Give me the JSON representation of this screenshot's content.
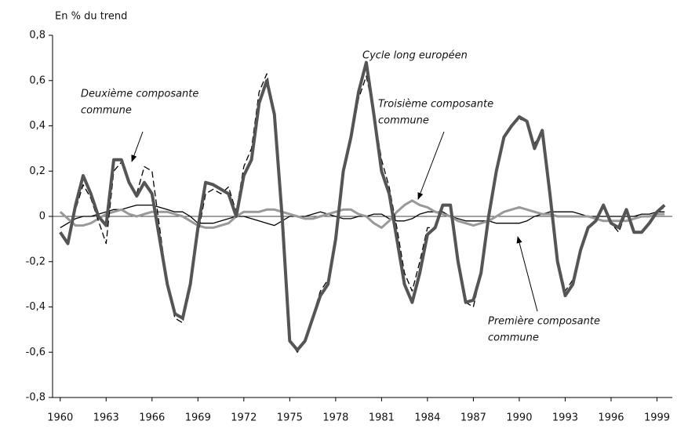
{
  "chart_data": {
    "type": "line",
    "axis_title": "En % du trend",
    "x": [
      1960,
      1960.5,
      1961,
      1961.5,
      1962,
      1962.5,
      1963,
      1963.5,
      1964,
      1964.5,
      1965,
      1965.5,
      1966,
      1966.5,
      1967,
      1967.5,
      1968,
      1968.5,
      1969,
      1969.5,
      1970,
      1970.5,
      1971,
      1971.5,
      1972,
      1972.5,
      1973,
      1973.5,
      1974,
      1974.5,
      1975,
      1975.5,
      1976,
      1976.5,
      1977,
      1977.5,
      1978,
      1978.5,
      1979,
      1979.5,
      1980,
      1980.5,
      1981,
      1981.5,
      1982,
      1982.5,
      1983,
      1983.5,
      1984,
      1984.5,
      1985,
      1985.5,
      1986,
      1986.5,
      1987,
      1987.5,
      1988,
      1988.5,
      1989,
      1989.5,
      1990,
      1990.5,
      1991,
      1991.5,
      1992,
      1992.5,
      1993,
      1993.5,
      1994,
      1994.5,
      1995,
      1995.5,
      1996,
      1996.5,
      1997,
      1997.5,
      1998,
      1998.5,
      1999,
      1999.5
    ],
    "series": [
      {
        "label": [
          "Première composante",
          "commune"
        ],
        "color": "#000000",
        "style": "solid",
        "width": 1.3,
        "values": [
          -0.05,
          -0.03,
          -0.01,
          0.0,
          0.0,
          0.01,
          0.02,
          0.03,
          0.03,
          0.04,
          0.05,
          0.05,
          0.05,
          0.04,
          0.03,
          0.02,
          0.02,
          0.0,
          -0.03,
          -0.03,
          -0.03,
          -0.02,
          -0.01,
          0.0,
          0.0,
          -0.01,
          -0.02,
          -0.03,
          -0.04,
          -0.02,
          0.0,
          0.0,
          0.0,
          0.01,
          0.02,
          0.01,
          0.0,
          -0.01,
          -0.01,
          0.0,
          0.0,
          0.01,
          0.01,
          -0.01,
          -0.02,
          -0.02,
          -0.01,
          0.01,
          0.02,
          0.02,
          0.02,
          0.0,
          -0.01,
          -0.02,
          -0.02,
          -0.02,
          -0.02,
          -0.03,
          -0.03,
          -0.03,
          -0.03,
          -0.02,
          0.0,
          0.01,
          0.02,
          0.02,
          0.02,
          0.02,
          0.01,
          0.0,
          0.0,
          0.0,
          0.0,
          0.0,
          0.0,
          0.0,
          0.01,
          0.01,
          0.02,
          0.02
        ]
      },
      {
        "label": [
          "Troisième composante",
          "commune"
        ],
        "color": "#999999",
        "style": "solid",
        "width": 3,
        "values": [
          0.02,
          -0.01,
          -0.04,
          -0.04,
          -0.03,
          -0.01,
          0.01,
          0.02,
          0.03,
          0.01,
          0.0,
          0.01,
          0.02,
          0.02,
          0.02,
          0.01,
          0.0,
          -0.02,
          -0.04,
          -0.05,
          -0.05,
          -0.04,
          -0.03,
          0.0,
          0.02,
          0.02,
          0.02,
          0.03,
          0.03,
          0.02,
          0.01,
          0.0,
          -0.01,
          -0.01,
          0.0,
          0.01,
          0.02,
          0.03,
          0.03,
          0.01,
          0.0,
          -0.03,
          -0.05,
          -0.02,
          0.02,
          0.05,
          0.07,
          0.05,
          0.04,
          0.02,
          0.01,
          0.0,
          -0.02,
          -0.03,
          -0.04,
          -0.03,
          -0.02,
          0.0,
          0.02,
          0.03,
          0.04,
          0.03,
          0.02,
          0.01,
          0.01,
          0.0,
          0.0,
          0.0,
          0.0,
          0.0,
          -0.01,
          -0.02,
          -0.02,
          -0.02,
          -0.02,
          -0.01,
          0.0,
          0.0,
          0.01,
          0.01
        ]
      },
      {
        "label": [
          "Deuxième composante",
          "commune"
        ],
        "color": "#000000",
        "style": "dashed",
        "width": 1.3,
        "values": [
          -0.07,
          -0.11,
          0.03,
          0.14,
          0.08,
          -0.02,
          -0.12,
          0.2,
          0.24,
          0.14,
          0.1,
          0.22,
          0.2,
          -0.05,
          -0.3,
          -0.45,
          -0.47,
          -0.32,
          -0.08,
          0.1,
          0.12,
          0.1,
          0.13,
          0.02,
          0.22,
          0.3,
          0.55,
          0.63,
          0.45,
          0.0,
          -0.55,
          -0.6,
          -0.55,
          -0.44,
          -0.33,
          -0.28,
          -0.08,
          0.2,
          0.33,
          0.52,
          0.62,
          0.46,
          0.25,
          0.13,
          -0.05,
          -0.25,
          -0.33,
          -0.2,
          -0.05,
          -0.05,
          0.05,
          0.05,
          -0.2,
          -0.38,
          -0.4,
          -0.25,
          0.0,
          0.2,
          0.35,
          0.4,
          0.43,
          0.42,
          0.32,
          0.38,
          0.12,
          -0.18,
          -0.33,
          -0.28,
          -0.15,
          -0.05,
          -0.02,
          0.05,
          -0.03,
          -0.07,
          0.02,
          -0.07,
          -0.07,
          -0.03,
          0.02,
          0.04
        ]
      },
      {
        "label": [
          "Cycle long européen"
        ],
        "color": "#555555",
        "style": "solid",
        "width": 4,
        "values": [
          -0.07,
          -0.12,
          0.05,
          0.18,
          0.1,
          0.0,
          -0.04,
          0.25,
          0.25,
          0.15,
          0.09,
          0.15,
          0.1,
          -0.1,
          -0.3,
          -0.43,
          -0.45,
          -0.3,
          -0.05,
          0.15,
          0.14,
          0.12,
          0.1,
          0.0,
          0.18,
          0.25,
          0.5,
          0.6,
          0.45,
          0.0,
          -0.55,
          -0.59,
          -0.55,
          -0.45,
          -0.35,
          -0.3,
          -0.1,
          0.2,
          0.35,
          0.55,
          0.68,
          0.45,
          0.2,
          0.1,
          -0.1,
          -0.3,
          -0.38,
          -0.25,
          -0.08,
          -0.05,
          0.05,
          0.05,
          -0.2,
          -0.38,
          -0.37,
          -0.25,
          0.0,
          0.2,
          0.35,
          0.4,
          0.44,
          0.42,
          0.3,
          0.38,
          0.1,
          -0.2,
          -0.35,
          -0.3,
          -0.15,
          -0.05,
          -0.02,
          0.05,
          -0.03,
          -0.05,
          0.03,
          -0.07,
          -0.07,
          -0.03,
          0.02,
          0.05
        ]
      }
    ],
    "xlim": [
      1959.5,
      2000
    ],
    "xticks": [
      1960,
      1963,
      1966,
      1969,
      1972,
      1975,
      1978,
      1981,
      1984,
      1987,
      1990,
      1993,
      1996,
      1999
    ],
    "ylim": [
      -0.8,
      0.8
    ],
    "yticks": [
      {
        "value": -0.8,
        "label": "-0,8"
      },
      {
        "value": -0.6,
        "label": "-0,6"
      },
      {
        "value": -0.4,
        "label": "-0,4"
      },
      {
        "value": -0.2,
        "label": "-0,2"
      },
      0,
      {
        "value": 0.2,
        "label": "0,2"
      },
      {
        "value": 0.4,
        "label": "0,4"
      },
      {
        "value": 0.6,
        "label": "0,6"
      },
      {
        "value": 0.8,
        "label": "0,8"
      }
    ]
  }
}
